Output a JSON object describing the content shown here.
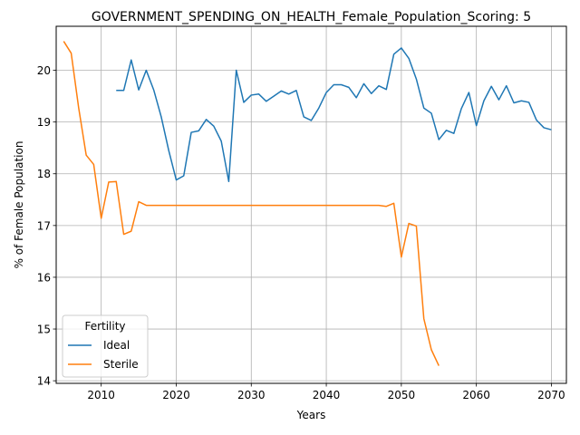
{
  "chart_data": {
    "type": "line",
    "title": "GOVERNMENT_SPENDING_ON_HEALTH_Female_Population_Scoring: 5",
    "xlabel": "Years",
    "ylabel": "% of Female Population",
    "xlim": [
      2004,
      2072
    ],
    "ylim": [
      13.95,
      20.85
    ],
    "xticks": [
      2010,
      2020,
      2030,
      2040,
      2050,
      2060,
      2070
    ],
    "yticks": [
      14,
      15,
      16,
      17,
      18,
      19,
      20
    ],
    "grid": true,
    "legend": {
      "title": "Fertility",
      "placement": "lower-left"
    },
    "series": [
      {
        "name": "Ideal",
        "color": "#1f77b4",
        "x": [
          2012,
          2013,
          2014,
          2015,
          2016,
          2017,
          2018,
          2019,
          2020,
          2021,
          2022,
          2023,
          2024,
          2025,
          2026,
          2027,
          2028,
          2029,
          2030,
          2031,
          2032,
          2033,
          2034,
          2035,
          2036,
          2037,
          2038,
          2039,
          2040,
          2041,
          2042,
          2043,
          2044,
          2045,
          2046,
          2047,
          2048,
          2049,
          2050,
          2051,
          2052,
          2053,
          2054,
          2055,
          2056,
          2057,
          2058,
          2059,
          2060,
          2061,
          2062,
          2063,
          2064,
          2065,
          2066,
          2067,
          2068,
          2069,
          2070
        ],
        "values": [
          19.61,
          19.61,
          20.2,
          19.62,
          20.0,
          19.62,
          19.1,
          18.45,
          17.88,
          17.96,
          18.8,
          18.83,
          19.05,
          18.92,
          18.63,
          17.85,
          20.0,
          19.38,
          19.52,
          19.54,
          19.4,
          19.5,
          19.6,
          19.54,
          19.61,
          19.1,
          19.03,
          19.27,
          19.57,
          19.72,
          19.72,
          19.67,
          19.47,
          19.74,
          19.55,
          19.7,
          19.63,
          20.31,
          20.43,
          20.23,
          19.83,
          19.27,
          19.17,
          18.66,
          18.84,
          18.78,
          19.26,
          19.57,
          18.93,
          19.41,
          19.69,
          19.43,
          19.7,
          19.37,
          19.41,
          19.38,
          19.04,
          18.89,
          18.85
        ]
      },
      {
        "name": "Sterile",
        "color": "#ff7f0e",
        "x": [
          2005,
          2006,
          2007,
          2008,
          2009,
          2010,
          2011,
          2012,
          2013,
          2014,
          2015,
          2016,
          2017,
          2018,
          2019,
          2020,
          2021,
          2022,
          2023,
          2024,
          2025,
          2026,
          2027,
          2028,
          2029,
          2030,
          2031,
          2032,
          2033,
          2034,
          2035,
          2036,
          2037,
          2038,
          2039,
          2040,
          2041,
          2042,
          2043,
          2044,
          2045,
          2046,
          2047,
          2048,
          2049,
          2050,
          2051,
          2052,
          2053,
          2054,
          2055
        ],
        "values": [
          20.56,
          20.33,
          19.27,
          18.36,
          18.18,
          17.14,
          17.84,
          17.85,
          16.83,
          16.89,
          17.46,
          17.39,
          17.39,
          17.39,
          17.39,
          17.39,
          17.39,
          17.39,
          17.39,
          17.39,
          17.39,
          17.39,
          17.39,
          17.39,
          17.39,
          17.39,
          17.39,
          17.39,
          17.39,
          17.39,
          17.39,
          17.39,
          17.39,
          17.39,
          17.39,
          17.39,
          17.39,
          17.39,
          17.39,
          17.39,
          17.39,
          17.39,
          17.39,
          17.37,
          17.43,
          16.39,
          17.04,
          16.99,
          15.2,
          14.6,
          14.29
        ]
      }
    ]
  }
}
